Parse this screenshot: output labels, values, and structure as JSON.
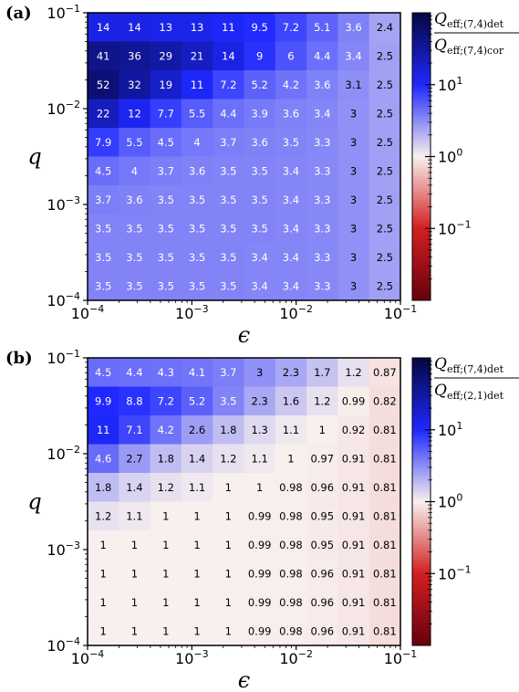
{
  "colors": {
    "cmap": [
      "#67000d",
      "#d21f20",
      "#f8f0ee",
      "#1e28ff",
      "#05073f"
    ],
    "frame": "#000000"
  },
  "chart_data": [
    {
      "type": "heatmap",
      "panel_label": "(a)",
      "colorbar_label": {
        "numerator": "Q_eff;(7,4)det",
        "denominator": "Q_eff;(7,4)cor"
      },
      "xlabel": "ϵ",
      "ylabel": "q",
      "x_scale": "log",
      "y_scale": "log",
      "xlim": [
        0.0001,
        0.1
      ],
      "ylim": [
        0.0001,
        0.1
      ],
      "colorbar_scale": "log",
      "colorbar_range": [
        0.01,
        100
      ],
      "colorbar_ticks": [
        0.1,
        1,
        10
      ],
      "x_ticks": [
        0.0001,
        0.001,
        0.01,
        0.1
      ],
      "y_ticks": [
        0.0001,
        0.001,
        0.01,
        0.1
      ],
      "rows_top_to_bottom": [
        [
          14,
          14,
          13,
          13,
          11,
          9.5,
          7.2,
          5.1,
          3.6,
          2.4
        ],
        [
          41,
          36,
          29,
          21,
          14,
          9,
          6,
          4.4,
          3.4,
          2.5
        ],
        [
          52,
          32,
          19,
          11,
          7.2,
          5.2,
          4.2,
          3.6,
          3.1,
          2.5
        ],
        [
          22,
          12,
          7.7,
          5.5,
          4.4,
          3.9,
          3.6,
          3.4,
          3,
          2.5
        ],
        [
          7.9,
          5.5,
          4.5,
          4,
          3.7,
          3.6,
          3.5,
          3.3,
          3,
          2.5
        ],
        [
          4.5,
          4,
          3.7,
          3.6,
          3.5,
          3.5,
          3.4,
          3.3,
          3,
          2.5
        ],
        [
          3.7,
          3.6,
          3.5,
          3.5,
          3.5,
          3.5,
          3.4,
          3.3,
          3,
          2.5
        ],
        [
          3.5,
          3.5,
          3.5,
          3.5,
          3.5,
          3.5,
          3.4,
          3.3,
          3,
          2.5
        ],
        [
          3.5,
          3.5,
          3.5,
          3.5,
          3.5,
          3.4,
          3.4,
          3.3,
          3,
          2.5
        ],
        [
          3.5,
          3.5,
          3.5,
          3.5,
          3.5,
          3.4,
          3.4,
          3.3,
          3,
          2.5
        ]
      ]
    },
    {
      "type": "heatmap",
      "panel_label": "(b)",
      "colorbar_label": {
        "numerator": "Q_eff;(7,4)det",
        "denominator": "Q_eff;(2,1)det"
      },
      "xlabel": "ϵ",
      "ylabel": "q",
      "x_scale": "log",
      "y_scale": "log",
      "xlim": [
        0.0001,
        0.1
      ],
      "ylim": [
        0.0001,
        0.1
      ],
      "colorbar_scale": "log",
      "colorbar_range": [
        0.01,
        100
      ],
      "colorbar_ticks": [
        0.1,
        1,
        10
      ],
      "x_ticks": [
        0.0001,
        0.001,
        0.01,
        0.1
      ],
      "y_ticks": [
        0.0001,
        0.001,
        0.01,
        0.1
      ],
      "rows_top_to_bottom": [
        [
          4.5,
          4.4,
          4.3,
          4.1,
          3.7,
          3,
          2.3,
          1.7,
          1.2,
          0.87
        ],
        [
          9.9,
          8.8,
          7.2,
          5.2,
          3.5,
          2.3,
          1.6,
          1.2,
          0.99,
          0.82
        ],
        [
          11,
          7.1,
          4.2,
          2.6,
          1.8,
          1.3,
          1.1,
          1,
          0.92,
          0.81
        ],
        [
          4.6,
          2.7,
          1.8,
          1.4,
          1.2,
          1.1,
          1,
          0.97,
          0.91,
          0.81
        ],
        [
          1.8,
          1.4,
          1.2,
          1.1,
          1,
          1,
          0.98,
          0.96,
          0.91,
          0.81
        ],
        [
          1.2,
          1.1,
          1,
          1,
          1,
          0.99,
          0.98,
          0.95,
          0.91,
          0.81
        ],
        [
          1,
          1,
          1,
          1,
          1,
          0.99,
          0.98,
          0.95,
          0.91,
          0.81
        ],
        [
          1,
          1,
          1,
          1,
          1,
          0.99,
          0.98,
          0.96,
          0.91,
          0.81
        ],
        [
          1,
          1,
          1,
          1,
          1,
          0.99,
          0.98,
          0.96,
          0.91,
          0.81
        ],
        [
          1,
          1,
          1,
          1,
          1,
          0.99,
          0.98,
          0.96,
          0.91,
          0.81
        ]
      ]
    }
  ]
}
